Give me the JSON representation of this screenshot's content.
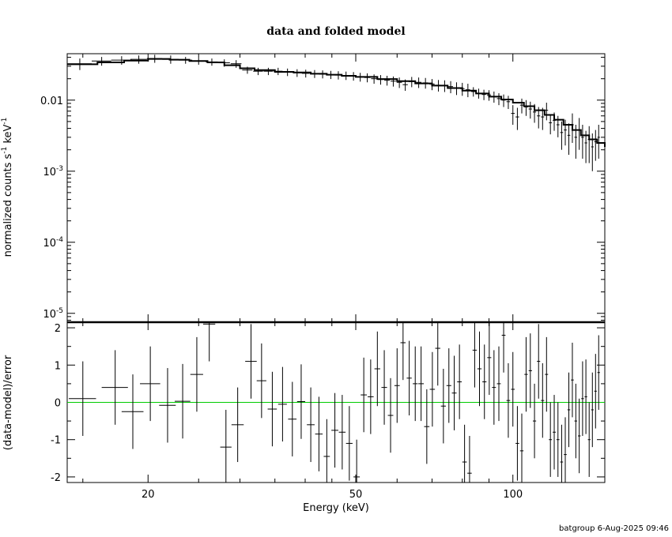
{
  "figure": {
    "title": "data and folded model",
    "footer": "batgroup  6-Aug-2025 09:46"
  },
  "top_panel": {
    "ylabel_parts": [
      "normalized counts s",
      "-1",
      " keV",
      "-1"
    ],
    "yticks": [
      {
        "v": 0.01,
        "base": "0.01",
        "exp": ""
      },
      {
        "v": 0.001,
        "base": "10",
        "exp": "-3"
      },
      {
        "v": 0.0001,
        "base": "10",
        "exp": "-4"
      },
      {
        "v": 1e-05,
        "base": "10",
        "exp": "-5"
      }
    ]
  },
  "bottom_panel": {
    "ylabel": "(data-model)/error",
    "yticks": [
      "2",
      "1",
      "0",
      "-1",
      "-2"
    ]
  },
  "xaxis": {
    "label": "Energy (keV)",
    "ticks": [
      "20",
      "50",
      "100"
    ]
  },
  "colors": {
    "data": "#000000",
    "model": "#000000",
    "zero_line": "#00cc00",
    "frame": "#000000"
  },
  "chart_data": [
    {
      "type": "scatter",
      "panel": "top",
      "xscale": "log",
      "yscale": "log",
      "xlim": [
        14.0,
        150.0
      ],
      "ylim": [
        7.5e-06,
        0.045
      ],
      "data": [
        [
          14.8,
          0.0325,
          0.8,
          0.006
        ],
        [
          16.3,
          0.0355,
          0.7,
          0.005
        ],
        [
          17.8,
          0.0365,
          0.8,
          0.005
        ],
        [
          19.2,
          0.0375,
          0.7,
          0.005
        ],
        [
          20.6,
          0.0385,
          0.7,
          0.005
        ],
        [
          22.1,
          0.0375,
          0.8,
          0.005
        ],
        [
          23.6,
          0.0365,
          0.7,
          0.004
        ],
        [
          25.0,
          0.0355,
          0.7,
          0.004
        ],
        [
          26.5,
          0.0345,
          0.7,
          0.004
        ],
        [
          28.0,
          0.0335,
          0.7,
          0.004
        ],
        [
          29.5,
          0.0325,
          0.7,
          0.004
        ],
        [
          31.0,
          0.0265,
          0.7,
          0.003
        ],
        [
          32.5,
          0.0255,
          0.7,
          0.003
        ],
        [
          34.0,
          0.0255,
          0.7,
          0.003
        ],
        [
          35.5,
          0.0255,
          0.7,
          0.003
        ],
        [
          37.0,
          0.0248,
          0.7,
          0.003
        ],
        [
          38.6,
          0.0242,
          0.7,
          0.003
        ],
        [
          40.1,
          0.0238,
          0.7,
          0.003
        ],
        [
          41.7,
          0.0235,
          0.7,
          0.003
        ],
        [
          43.2,
          0.0232,
          0.7,
          0.003
        ],
        [
          44.8,
          0.0228,
          0.7,
          0.003
        ],
        [
          46.3,
          0.0225,
          0.7,
          0.003
        ],
        [
          47.9,
          0.0222,
          0.7,
          0.003
        ],
        [
          49.5,
          0.0218,
          0.7,
          0.003
        ],
        [
          51.0,
          0.0212,
          0.7,
          0.003
        ],
        [
          52.6,
          0.0208,
          0.7,
          0.003
        ],
        [
          54.2,
          0.02,
          0.7,
          0.003
        ],
        [
          55.8,
          0.0195,
          0.7,
          0.003
        ],
        [
          57.4,
          0.019,
          0.7,
          0.003
        ],
        [
          59.0,
          0.0185,
          0.7,
          0.003
        ],
        [
          60.6,
          0.0178,
          0.7,
          0.003
        ],
        [
          62.2,
          0.0165,
          0.7,
          0.003
        ],
        [
          64.0,
          0.0182,
          0.8,
          0.003
        ],
        [
          66.0,
          0.0178,
          0.8,
          0.003
        ],
        [
          68.0,
          0.0175,
          0.8,
          0.003
        ],
        [
          70.0,
          0.0168,
          0.8,
          0.003
        ],
        [
          72.0,
          0.0162,
          0.8,
          0.003
        ],
        [
          74.0,
          0.016,
          0.8,
          0.003
        ],
        [
          76.0,
          0.0155,
          0.8,
          0.003
        ],
        [
          78.0,
          0.0148,
          0.8,
          0.003
        ],
        [
          80.0,
          0.0145,
          0.8,
          0.003
        ],
        [
          82.0,
          0.014,
          0.8,
          0.003
        ],
        [
          84.0,
          0.0132,
          0.8,
          0.002
        ],
        [
          86.0,
          0.0125,
          0.8,
          0.002
        ],
        [
          88.0,
          0.012,
          0.8,
          0.002
        ],
        [
          90.0,
          0.0118,
          0.8,
          0.002
        ],
        [
          92.0,
          0.0112,
          0.8,
          0.002
        ],
        [
          94.0,
          0.0105,
          0.8,
          0.002
        ],
        [
          96.0,
          0.01,
          0.8,
          0.002
        ],
        [
          98.0,
          0.0095,
          0.8,
          0.002
        ],
        [
          100.0,
          0.0065,
          0.8,
          0.002
        ],
        [
          102.0,
          0.0058,
          0.8,
          0.002
        ],
        [
          104.0,
          0.0085,
          0.8,
          0.002
        ],
        [
          106.0,
          0.008,
          0.8,
          0.002
        ],
        [
          108.0,
          0.0075,
          0.8,
          0.002
        ],
        [
          110.0,
          0.0068,
          0.8,
          0.002
        ],
        [
          112.0,
          0.006,
          0.8,
          0.002
        ],
        [
          114.0,
          0.0058,
          0.8,
          0.002
        ],
        [
          116.0,
          0.0072,
          0.8,
          0.002
        ],
        [
          118.0,
          0.0048,
          0.8,
          0.0015
        ],
        [
          120.0,
          0.0052,
          0.8,
          0.0015
        ],
        [
          122.0,
          0.0045,
          0.8,
          0.0015
        ],
        [
          124.0,
          0.0035,
          0.8,
          0.0015
        ],
        [
          126.0,
          0.0038,
          0.8,
          0.0015
        ],
        [
          128.0,
          0.0032,
          0.8,
          0.0015
        ],
        [
          130.0,
          0.0045,
          0.8,
          0.002
        ],
        [
          132.0,
          0.003,
          0.8,
          0.0015
        ],
        [
          134.0,
          0.0038,
          0.8,
          0.0018
        ],
        [
          136.0,
          0.003,
          0.8,
          0.0015
        ],
        [
          138.0,
          0.0025,
          0.8,
          0.0012
        ],
        [
          140.0,
          0.0028,
          0.8,
          0.0015
        ],
        [
          142.0,
          0.0022,
          0.8,
          0.0012
        ],
        [
          144.0,
          0.0026,
          0.8,
          0.0012
        ],
        [
          146.0,
          0.003,
          0.8,
          0.0015
        ]
      ],
      "model": [
        [
          14.0,
          0.032
        ],
        [
          16.0,
          0.034
        ],
        [
          18.0,
          0.036
        ],
        [
          20.0,
          0.038
        ],
        [
          22.0,
          0.037
        ],
        [
          24.0,
          0.0355
        ],
        [
          26.0,
          0.034
        ],
        [
          28.0,
          0.031
        ],
        [
          30.0,
          0.028
        ],
        [
          32.0,
          0.0265
        ],
        [
          35.0,
          0.025
        ],
        [
          38.0,
          0.0245
        ],
        [
          41.0,
          0.0235
        ],
        [
          44.0,
          0.0228
        ],
        [
          47.0,
          0.022
        ],
        [
          50.0,
          0.0212
        ],
        [
          55.0,
          0.0198
        ],
        [
          60.0,
          0.0185
        ],
        [
          65.0,
          0.0172
        ],
        [
          70.0,
          0.016
        ],
        [
          75.0,
          0.0148
        ],
        [
          80.0,
          0.0136
        ],
        [
          85.0,
          0.0124
        ],
        [
          90.0,
          0.0112
        ],
        [
          95.0,
          0.0102
        ],
        [
          100.0,
          0.0092
        ],
        [
          105.0,
          0.0082
        ],
        [
          110.0,
          0.0072
        ],
        [
          115.0,
          0.0062
        ],
        [
          120.0,
          0.0053
        ],
        [
          125.0,
          0.0045
        ],
        [
          130.0,
          0.0038
        ],
        [
          135.0,
          0.0032
        ],
        [
          140.0,
          0.0028
        ],
        [
          145.0,
          0.0025
        ],
        [
          150.0,
          0.0022
        ]
      ]
    },
    {
      "type": "scatter",
      "panel": "bottom",
      "xscale": "log",
      "yscale": "linear",
      "xlim": [
        14.0,
        150.0
      ],
      "ylim": [
        -2.15,
        2.15
      ],
      "zero_line": 0,
      "data": [
        [
          15.0,
          0.1,
          0.9,
          1.0
        ],
        [
          17.3,
          0.4,
          1.0,
          1.0
        ],
        [
          18.7,
          -0.25,
          0.9,
          1.0
        ],
        [
          20.2,
          0.5,
          0.9,
          1.0
        ],
        [
          21.8,
          -0.08,
          0.8,
          1.0
        ],
        [
          23.3,
          0.03,
          0.8,
          1.0
        ],
        [
          24.8,
          0.75,
          0.7,
          1.0
        ],
        [
          26.2,
          2.1,
          0.7,
          1.0
        ],
        [
          28.2,
          -1.2,
          0.7,
          1.0
        ],
        [
          29.7,
          -0.6,
          0.8,
          1.0
        ],
        [
          31.5,
          1.1,
          0.8,
          1.0
        ],
        [
          33.0,
          0.58,
          0.7,
          1.0
        ],
        [
          34.6,
          -0.18,
          0.7,
          1.0
        ],
        [
          36.2,
          -0.05,
          0.7,
          1.0
        ],
        [
          37.8,
          -0.45,
          0.7,
          1.0
        ],
        [
          39.3,
          0.02,
          0.7,
          1.0
        ],
        [
          41.0,
          -0.6,
          0.7,
          1.0
        ],
        [
          42.5,
          -0.85,
          0.7,
          1.0
        ],
        [
          44.0,
          -1.45,
          0.6,
          1.0
        ],
        [
          45.6,
          -0.75,
          0.7,
          1.0
        ],
        [
          47.1,
          -0.8,
          0.7,
          1.0
        ],
        [
          48.6,
          -1.1,
          0.7,
          1.0
        ],
        [
          50.2,
          -2.0,
          0.7,
          1.0
        ],
        [
          51.8,
          0.2,
          0.7,
          1.0
        ],
        [
          53.4,
          0.15,
          0.7,
          1.0
        ],
        [
          55.0,
          0.9,
          0.7,
          1.0
        ],
        [
          56.7,
          0.4,
          0.7,
          1.0
        ],
        [
          58.3,
          -0.35,
          0.7,
          1.0
        ],
        [
          60.0,
          0.45,
          0.7,
          1.0
        ],
        [
          61.6,
          1.6,
          0.7,
          1.0
        ],
        [
          63.3,
          0.65,
          0.7,
          1.0
        ],
        [
          65.0,
          0.5,
          0.7,
          1.0
        ],
        [
          66.7,
          0.5,
          0.8,
          1.0
        ],
        [
          68.4,
          -0.65,
          0.8,
          1.0
        ],
        [
          70.1,
          0.35,
          0.8,
          1.0
        ],
        [
          71.8,
          1.45,
          0.8,
          1.0
        ],
        [
          73.6,
          -0.1,
          0.8,
          1.0
        ],
        [
          75.4,
          0.45,
          0.8,
          1.0
        ],
        [
          77.2,
          0.25,
          0.8,
          1.0
        ],
        [
          79.0,
          0.55,
          0.8,
          1.0
        ],
        [
          80.8,
          -1.6,
          0.8,
          1.0
        ],
        [
          82.6,
          -1.9,
          0.8,
          1.0
        ],
        [
          84.5,
          1.4,
          0.8,
          1.0
        ],
        [
          86.3,
          0.9,
          0.8,
          1.0
        ],
        [
          88.2,
          0.55,
          0.8,
          1.0
        ],
        [
          90.1,
          1.2,
          0.8,
          1.0
        ],
        [
          92.0,
          0.4,
          0.8,
          1.0
        ],
        [
          94.0,
          0.5,
          0.8,
          1.0
        ],
        [
          96.0,
          1.8,
          0.8,
          1.0
        ],
        [
          98.0,
          0.05,
          0.8,
          1.0
        ],
        [
          100.0,
          0.35,
          0.8,
          1.0
        ],
        [
          102.0,
          -1.1,
          0.8,
          1.0
        ],
        [
          104.0,
          -1.3,
          0.8,
          1.0
        ],
        [
          106.0,
          0.75,
          0.8,
          1.0
        ],
        [
          108.0,
          0.85,
          0.8,
          1.0
        ],
        [
          110.0,
          -0.5,
          0.8,
          1.0
        ],
        [
          112.0,
          1.1,
          0.8,
          1.0
        ],
        [
          114.0,
          0.05,
          0.8,
          1.0
        ],
        [
          116.0,
          0.75,
          0.8,
          1.0
        ],
        [
          118.0,
          -1.0,
          0.8,
          1.0
        ],
        [
          120.0,
          -0.8,
          0.8,
          1.0
        ],
        [
          122.0,
          -1.0,
          0.8,
          1.0
        ],
        [
          124.0,
          -1.6,
          0.8,
          1.0
        ],
        [
          126.0,
          -1.4,
          0.8,
          1.0
        ],
        [
          128.0,
          -0.2,
          0.8,
          1.0
        ],
        [
          130.0,
          0.6,
          0.8,
          1.0
        ],
        [
          132.0,
          -0.5,
          0.8,
          1.0
        ],
        [
          134.0,
          -0.9,
          0.8,
          1.0
        ],
        [
          136.0,
          0.1,
          0.8,
          1.0
        ],
        [
          138.0,
          0.15,
          0.8,
          1.0
        ],
        [
          140.0,
          -1.0,
          0.8,
          1.0
        ],
        [
          142.0,
          -0.2,
          0.8,
          1.0
        ],
        [
          144.0,
          0.3,
          0.8,
          1.0
        ],
        [
          146.0,
          0.8,
          0.8,
          1.0
        ]
      ]
    }
  ]
}
